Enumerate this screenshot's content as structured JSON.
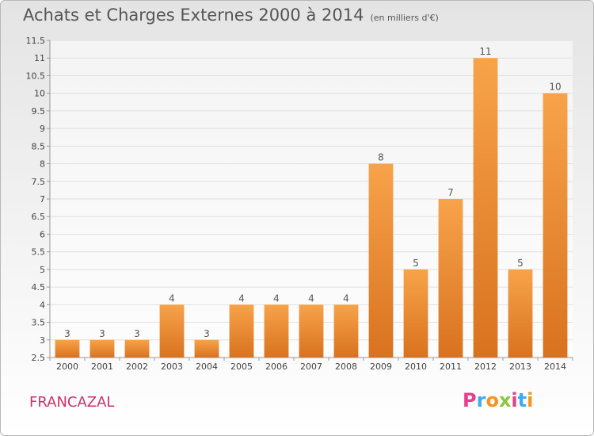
{
  "title": "Achats et Charges Externes 2000 à 2014",
  "subtitle": "(en milliers d'€)",
  "commune": "FRANCAZAL",
  "logo": {
    "letters": [
      "P",
      "r",
      "o",
      "x",
      "i",
      "t",
      "i"
    ],
    "colors": [
      "#e83e8c",
      "#3fa9f5",
      "#f7931e",
      "#8cc63f",
      "#e83e8c",
      "#3fa9f5",
      "#f7931e"
    ]
  },
  "colors": {
    "bar_top": "#f7a34a",
    "bar_bottom": "#d9721e",
    "grid": "#e0e0e0",
    "axis": "#999999"
  },
  "chart_data": {
    "type": "bar",
    "categories": [
      "2000",
      "2001",
      "2002",
      "2003",
      "2004",
      "2005",
      "2006",
      "2007",
      "2008",
      "2009",
      "2010",
      "2011",
      "2012",
      "2013",
      "2014"
    ],
    "values": [
      3,
      3,
      3,
      4,
      3,
      4,
      4,
      4,
      4,
      8,
      5,
      7,
      11,
      5,
      10
    ],
    "yticks": [
      "2.5",
      "3",
      "3.5",
      "4",
      "4.5",
      "5",
      "5.5",
      "6",
      "6.5",
      "7",
      "7.5",
      "8",
      "8.5",
      "9",
      "9.5",
      "10",
      "10.5",
      "11",
      "11.5"
    ],
    "ylim": [
      2.5,
      11.5
    ],
    "grid": true
  }
}
